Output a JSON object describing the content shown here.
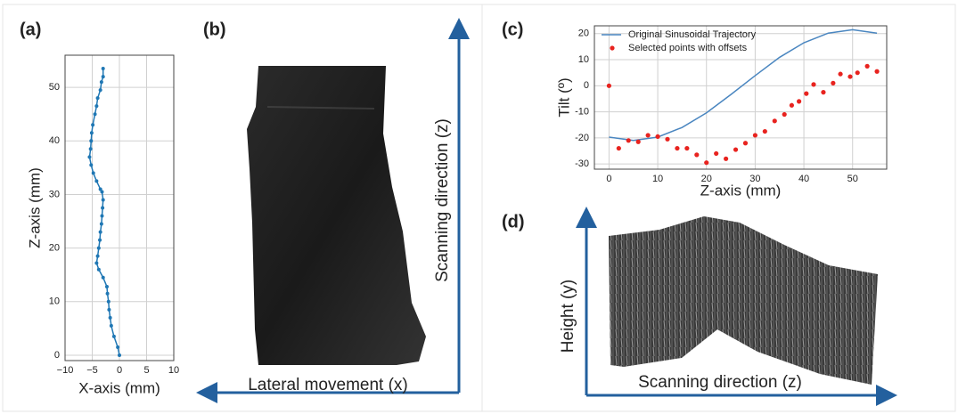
{
  "figure": {
    "panel_labels": [
      "(a)",
      "(b)",
      "(c)",
      "(d)"
    ],
    "b": {
      "x_label": "Lateral movement (x)",
      "y_label": "Scanning direction (z)"
    },
    "d": {
      "x_label": "Scanning direction (z)",
      "y_label": "Height (y)"
    }
  },
  "chart_data": [
    {
      "type": "line",
      "xlabel": "X-axis (mm)",
      "ylabel": "Z-axis (mm)",
      "x": [
        0,
        -0.3,
        -1,
        -1.5,
        -1.7,
        -1.9,
        -2,
        -2.2,
        -2.3,
        -3,
        -3.8,
        -4.2,
        -4,
        -3.8,
        -3.6,
        -3.5,
        -3.3,
        -3.2,
        -3.1,
        -3,
        -3.2,
        -3.5,
        -4.2,
        -4.8,
        -5.2,
        -5.5,
        -5.3,
        -5.2,
        -5.1,
        -4.9,
        -4.5,
        -4.2,
        -4,
        -3.5,
        -3.3,
        -3,
        -3
      ],
      "series": [
        {
          "color": "#1f77b4",
          "markers": true,
          "values": [
            0,
            1.5,
            3.5,
            5.5,
            7,
            8.5,
            10,
            11.5,
            12.8,
            14.5,
            16,
            17.2,
            18.5,
            20,
            21.5,
            23,
            24.5,
            26,
            27.5,
            29,
            30.5,
            31,
            32.5,
            34,
            35.5,
            37,
            38.5,
            40,
            41.5,
            43,
            45,
            46.5,
            48,
            49.5,
            51,
            52,
            53.5
          ]
        }
      ],
      "xlim": [
        -10,
        10
      ],
      "ylim": [
        -1,
        56
      ],
      "xticks": [
        {
          "value": -10,
          "label": "−10"
        },
        {
          "value": -5,
          "label": "−5"
        },
        0,
        5,
        10
      ],
      "yticks": [
        0,
        10,
        20,
        30,
        40,
        50
      ],
      "grid": true
    },
    {
      "type": "line",
      "xlabel": "Z-axis (mm)",
      "ylabel": "Tilt (º)",
      "legend": "upper left",
      "series": [
        {
          "name": "Original Sinusoidal Trajectory",
          "color": "#4a86c0",
          "style": "line",
          "x": [
            0,
            5,
            10,
            15,
            20,
            25,
            30,
            35,
            40,
            45,
            50,
            55
          ],
          "values": [
            -19.7,
            -21,
            -19.7,
            -16,
            -10.4,
            -3.4,
            3.9,
            10.9,
            16.5,
            20.2,
            21.5,
            20.2
          ]
        },
        {
          "name": "Selected points with offsets",
          "color": "#e8231f",
          "style": "scatter",
          "x": [
            0,
            2,
            4,
            6,
            8,
            10,
            12,
            14,
            16,
            18,
            20,
            22,
            24,
            26,
            28,
            30,
            32,
            34,
            36,
            37.5,
            39,
            40.5,
            42,
            44,
            46,
            47.5,
            49.5,
            51,
            53,
            55
          ],
          "values": [
            0,
            -24,
            -21,
            -21.5,
            -19,
            -19.5,
            -20.5,
            -24,
            -24,
            -26.5,
            -29.5,
            -26,
            -28,
            -24.5,
            -22,
            -19,
            -17.5,
            -13.5,
            -11,
            -7.5,
            -6,
            -3,
            0.5,
            -2.5,
            1,
            4.5,
            3.5,
            5,
            7.5,
            5.5
          ]
        }
      ],
      "xlim": [
        -3,
        57
      ],
      "ylim": [
        -32,
        23
      ],
      "xticks": [
        0,
        10,
        20,
        30,
        40,
        50
      ],
      "yticks": [
        -30,
        -20,
        -10,
        0,
        10,
        20
      ],
      "grid": true
    }
  ]
}
